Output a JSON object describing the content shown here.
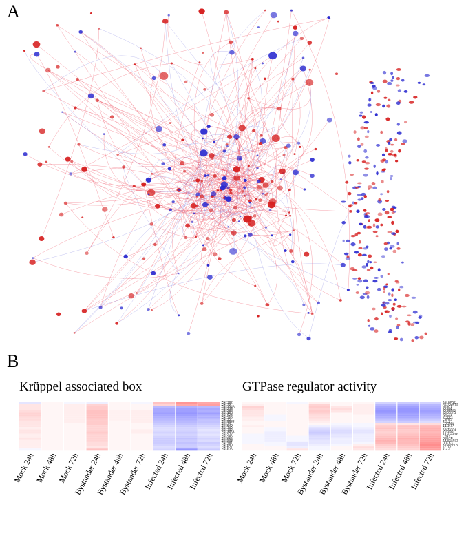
{
  "panel_a": {
    "letter": "A",
    "colors": {
      "up": "#d62020",
      "down": "#2a2ad0",
      "edge_up": "#ee5566",
      "edge_down": "#7777dd"
    }
  },
  "panel_b": {
    "letter": "B",
    "columns": [
      "Mock 24h",
      "Mock 48h",
      "Mock 72h",
      "Bystander 24h",
      "Bystander 48h",
      "Bystander 72h",
      "Infected 24h",
      "Infected 48h",
      "Infected 72h"
    ],
    "heatmaps": [
      {
        "title": "Krüppel associated box",
        "genes": [
          "ZNF382",
          "ZNF79",
          "ZNF334A",
          "ZNF238",
          "ZNF283",
          "ZNF483",
          "ZNF624",
          "ZNF566",
          "ZNF35",
          "ZNF8888",
          "ZNF14",
          "ZNF649",
          "ZNF382",
          "ZNF347",
          "ZNF486A",
          "ZNF577",
          "ZNF585",
          "ZNF665",
          "ZNF548",
          "ZNF581",
          "ZNF680",
          "ZNF671",
          "ZNF675"
        ],
        "values": [
          [
            -0.15,
            0.05,
            -0.05,
            -0.1,
            0.05,
            -0.05,
            0.35,
            0.6,
            0.5
          ],
          [
            0.15,
            0.05,
            0.1,
            0.25,
            0.05,
            0.05,
            0.25,
            0.5,
            0.55
          ],
          [
            0.15,
            0.05,
            0.1,
            0.3,
            0.05,
            0.05,
            -0.4,
            -0.45,
            -0.4
          ],
          [
            0.15,
            0.05,
            0.1,
            0.3,
            0.05,
            0.05,
            -0.5,
            -0.55,
            -0.5
          ],
          [
            0.2,
            0.05,
            0.1,
            0.35,
            0.08,
            0.1,
            -0.5,
            -0.55,
            -0.45
          ],
          [
            0.25,
            0.05,
            0.1,
            0.35,
            0.08,
            0.1,
            -0.55,
            -0.6,
            -0.55
          ],
          [
            0.25,
            0.05,
            0.1,
            0.35,
            0.08,
            0.1,
            -0.5,
            -0.55,
            -0.45
          ],
          [
            0.2,
            0.05,
            0.1,
            0.35,
            0.08,
            0.1,
            -0.45,
            -0.5,
            -0.45
          ],
          [
            0.2,
            0.05,
            0.1,
            0.3,
            0.08,
            0.1,
            -0.4,
            -0.45,
            -0.35
          ],
          [
            0.15,
            0.05,
            0.1,
            0.3,
            0.05,
            0.1,
            -0.35,
            -0.4,
            -0.35
          ],
          [
            0.15,
            0.05,
            0.05,
            0.3,
            0.05,
            0.05,
            -0.3,
            -0.35,
            -0.3
          ],
          [
            0.15,
            0.05,
            0.05,
            0.25,
            0.05,
            0.05,
            -0.25,
            -0.3,
            -0.25
          ],
          [
            0.1,
            0.05,
            0.05,
            0.25,
            0.05,
            0.05,
            -0.2,
            -0.25,
            -0.2
          ],
          [
            0.15,
            0.05,
            0.05,
            0.25,
            0.05,
            0.1,
            -0.2,
            -0.25,
            -0.15
          ],
          [
            0.15,
            0.05,
            0.05,
            0.3,
            0.05,
            0.1,
            -0.25,
            -0.3,
            -0.2
          ],
          [
            0.1,
            0.05,
            0.05,
            0.25,
            0.05,
            0.05,
            -0.2,
            -0.25,
            -0.15
          ],
          [
            0.1,
            0.05,
            0.05,
            0.25,
            0.05,
            0.05,
            -0.25,
            -0.3,
            -0.2
          ],
          [
            0.15,
            0.05,
            0.05,
            0.25,
            0.05,
            0.05,
            -0.3,
            -0.35,
            -0.25
          ],
          [
            0.1,
            0.05,
            0.05,
            0.25,
            0.05,
            0.05,
            -0.3,
            -0.3,
            -0.2
          ],
          [
            0.1,
            0.05,
            0.05,
            0.2,
            0.05,
            0.05,
            -0.3,
            -0.35,
            -0.3
          ],
          [
            0.1,
            0.05,
            0.05,
            0.2,
            0.05,
            0.05,
            -0.25,
            -0.3,
            -0.25
          ],
          [
            0.1,
            0.05,
            0.05,
            0.15,
            0.05,
            0.05,
            -0.2,
            -0.3,
            -0.2
          ],
          [
            -0.05,
            0.05,
            0.05,
            0.35,
            0.05,
            0.05,
            -0.25,
            -0.6,
            -0.3
          ]
        ]
      },
      {
        "title": "GTPase regulator activity",
        "genes": [
          "RALGPS2",
          "ARHGAP12",
          "HERC1",
          "RASA4",
          "RASGRF2",
          "RASGRP3",
          "RASA1",
          "IQSEC1",
          "EXPH5",
          "RGL2",
          "CDGAP4",
          "ZBTB17",
          "ECT2",
          "RASGRP4",
          "IQGAP3",
          "ARHGAP16",
          "CYH2",
          "OBSCN",
          "ARHGAP32",
          "DOCK3",
          "RASGEF1B",
          "SYTL2",
          "RGL4"
        ],
        "values": [
          [
            0.05,
            0.05,
            -0.05,
            0.1,
            0.05,
            0.05,
            -0.25,
            -0.3,
            -0.25
          ],
          [
            0.1,
            0.05,
            0.05,
            0.25,
            0.05,
            0.1,
            -0.4,
            -0.45,
            -0.4
          ],
          [
            0.25,
            0.05,
            0.05,
            0.3,
            0.15,
            0.1,
            -0.5,
            -0.55,
            -0.45
          ],
          [
            0.2,
            0.05,
            0.05,
            0.25,
            0.2,
            0.1,
            -0.55,
            -0.6,
            -0.5
          ],
          [
            0.15,
            0.05,
            0.05,
            0.3,
            0.15,
            0.1,
            -0.6,
            -0.6,
            -0.55
          ],
          [
            0.15,
            0.05,
            0.05,
            0.25,
            0.05,
            0.1,
            -0.55,
            -0.55,
            -0.5
          ],
          [
            0.15,
            -0.05,
            0.05,
            0.2,
            0.05,
            0.05,
            -0.5,
            -0.55,
            -0.45
          ],
          [
            0.1,
            -0.05,
            0.05,
            0.2,
            0.05,
            0.05,
            -0.45,
            -0.5,
            -0.4
          ],
          [
            0.1,
            -0.05,
            0.05,
            0.15,
            0.05,
            0.05,
            -0.35,
            -0.4,
            -0.3
          ],
          [
            0.05,
            0.05,
            0.05,
            0.1,
            0.05,
            0.05,
            -0.25,
            -0.3,
            -0.2
          ],
          [
            0.05,
            0.05,
            0.05,
            0.05,
            -0.05,
            -0.05,
            0.2,
            0.15,
            0.2
          ],
          [
            0.1,
            0.05,
            0.05,
            -0.1,
            -0.1,
            -0.05,
            0.3,
            0.35,
            0.4
          ],
          [
            0.05,
            -0.05,
            0.05,
            -0.2,
            -0.15,
            -0.1,
            0.35,
            0.35,
            0.45
          ],
          [
            0.05,
            -0.05,
            0.05,
            -0.25,
            -0.2,
            -0.15,
            0.3,
            0.3,
            0.45
          ],
          [
            0.05,
            -0.1,
            0.05,
            -0.3,
            -0.2,
            -0.15,
            0.25,
            0.3,
            0.4
          ],
          [
            -0.05,
            -0.1,
            0.05,
            -0.25,
            -0.15,
            -0.1,
            0.3,
            0.35,
            0.45
          ],
          [
            -0.05,
            -0.1,
            -0.05,
            -0.2,
            -0.15,
            -0.1,
            0.35,
            0.4,
            0.5
          ],
          [
            -0.05,
            -0.1,
            -0.05,
            -0.2,
            -0.1,
            -0.1,
            0.4,
            0.45,
            0.55
          ],
          [
            -0.05,
            -0.1,
            -0.05,
            -0.15,
            -0.1,
            -0.1,
            0.45,
            0.4,
            0.55
          ],
          [
            -0.05,
            -0.05,
            -0.15,
            -0.15,
            -0.1,
            -0.05,
            0.4,
            0.4,
            0.6
          ],
          [
            0.05,
            -0.05,
            -0.15,
            -0.1,
            -0.05,
            0.1,
            0.3,
            0.35,
            0.65
          ],
          [
            0.05,
            0.05,
            -0.1,
            -0.05,
            0.05,
            0.2,
            0.25,
            0.3,
            0.6
          ],
          [
            0.05,
            0.05,
            0.15,
            -0.05,
            0.05,
            0.15,
            0.2,
            0.25,
            0.55
          ]
        ]
      }
    ]
  }
}
